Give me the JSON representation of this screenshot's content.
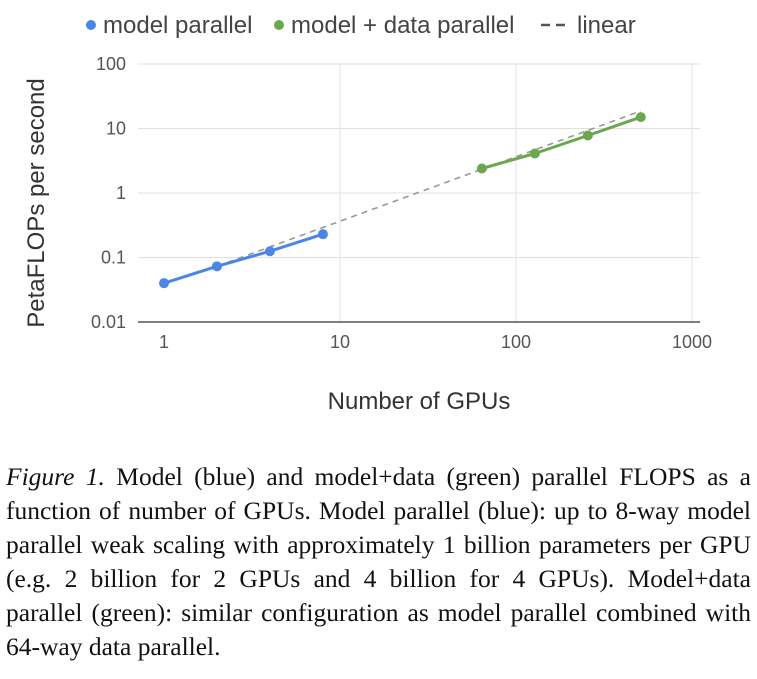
{
  "chart_data": {
    "type": "line",
    "xscale": "log",
    "yscale": "log",
    "xlim": [
      1,
      1000
    ],
    "ylim": [
      0.01,
      100
    ],
    "xlabel": "Number of GPUs",
    "ylabel": "PetaFLOPs per second",
    "xticks": [
      "1",
      "10",
      "100",
      "1000"
    ],
    "yticks": [
      "100",
      "10",
      "1",
      "0.1",
      "0.01"
    ],
    "legend_position": "top",
    "grid": true,
    "series": [
      {
        "name": "model parallel",
        "color": "#4a86e8",
        "x": [
          1,
          2,
          4,
          8
        ],
        "y": [
          0.04,
          0.073,
          0.125,
          0.23
        ]
      },
      {
        "name": "model + data parallel",
        "color": "#6aa84f",
        "x": [
          64,
          128,
          256,
          512
        ],
        "y": [
          2.4,
          4.1,
          7.8,
          15
        ]
      },
      {
        "name": "linear",
        "style": "dashed",
        "color": "#999999",
        "x": [
          2,
          512
        ],
        "y": [
          0.073,
          18.7
        ]
      }
    ]
  },
  "caption": {
    "label": "Figure 1.",
    "text": "Model (blue) and model+data (green) parallel FLOPS as a function of number of GPUs. Model parallel (blue): up to 8-way model parallel weak scaling with approximately 1 billion parameters per GPU (e.g. 2 billion for 2 GPUs and 4 billion for 4 GPUs). Model+data parallel (green): similar configuration as model parallel combined with 64-way data parallel."
  }
}
